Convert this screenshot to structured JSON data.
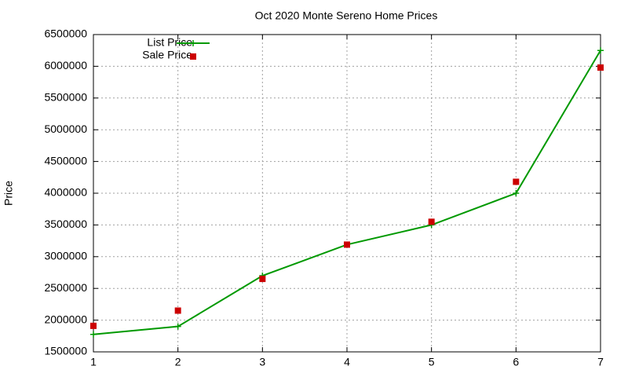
{
  "chart_data": {
    "type": "line",
    "title": "Oct 2020 Monte Sereno Home Prices",
    "y_label": "Price",
    "x": [
      1,
      2,
      3,
      4,
      5,
      6,
      7
    ],
    "series": [
      {
        "name": "List Price",
        "color": "#009900",
        "style": "linespoints",
        "values": [
          1775000,
          1900000,
          2700000,
          3190000,
          3500000,
          4000000,
          6250000
        ]
      },
      {
        "name": "Sale Price",
        "color": "#cc0000",
        "style": "points",
        "values": [
          1910000,
          2150000,
          2650000,
          3190000,
          3550000,
          4180000,
          5980000
        ]
      }
    ],
    "xlim": [
      1,
      7
    ],
    "xticks": [
      1,
      2,
      3,
      4,
      5,
      6,
      7
    ],
    "ylim": [
      1500000,
      6500000
    ],
    "yticks": [
      1500000,
      2000000,
      2500000,
      3000000,
      3500000,
      4000000,
      4500000,
      5000000,
      5500000,
      6000000,
      6500000
    ],
    "grid": true,
    "legend": "top-left"
  }
}
